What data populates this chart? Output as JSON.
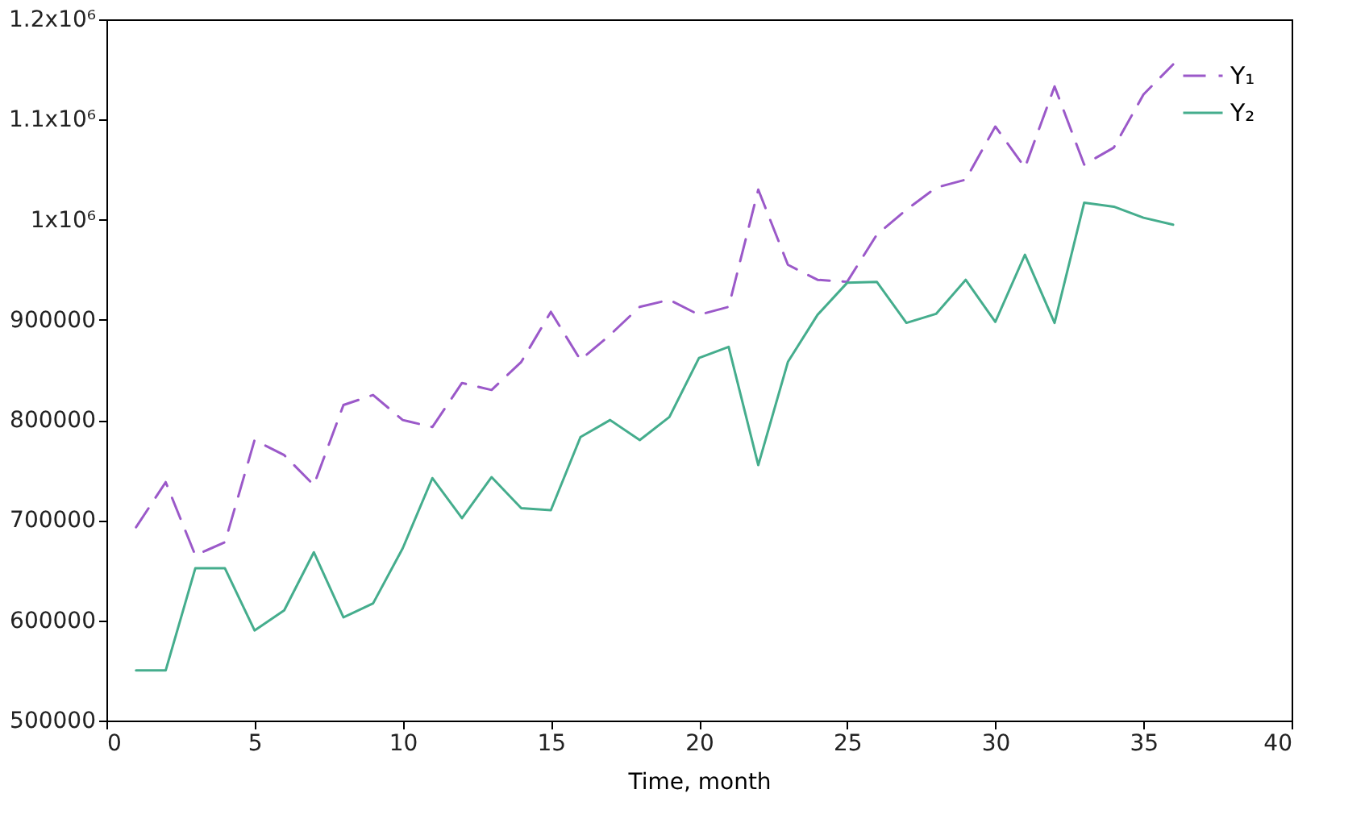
{
  "chart_data": {
    "type": "line",
    "xlabel": "Time, month",
    "x": [
      1,
      2,
      3,
      4,
      5,
      6,
      7,
      8,
      9,
      10,
      11,
      12,
      13,
      14,
      15,
      16,
      17,
      18,
      19,
      20,
      21,
      22,
      23,
      24,
      25,
      26,
      27,
      28,
      29,
      30,
      31,
      32,
      33,
      34,
      35,
      36
    ],
    "series": [
      {
        "name": "Y₁",
        "color": "#9b59c9",
        "line_style": "dashed",
        "values": [
          693000,
          738000,
          665000,
          678000,
          780000,
          765000,
          735000,
          815000,
          825000,
          800000,
          793000,
          837000,
          830000,
          858000,
          908000,
          860000,
          885000,
          913000,
          920000,
          905000,
          913000,
          1030000,
          955000,
          940000,
          938000,
          985000,
          1010000,
          1032000,
          1040000,
          1093000,
          1052000,
          1133000,
          1055000,
          1072000,
          1125000,
          1155000
        ]
      },
      {
        "name": "Y₂",
        "color": "#45ad8d",
        "line_style": "solid",
        "values": [
          550000,
          550000,
          652000,
          652000,
          590000,
          610000,
          668000,
          603000,
          617000,
          672000,
          742000,
          702000,
          743000,
          712000,
          710000,
          783000,
          800000,
          780000,
          803000,
          862000,
          873000,
          755000,
          858000,
          905000,
          937000,
          938000,
          897000,
          906000,
          940000,
          898000,
          965000,
          897000,
          1017000,
          1013000,
          1002000,
          995000
        ]
      }
    ],
    "xlim": [
      0,
      40
    ],
    "xticks": [
      0,
      5,
      10,
      15,
      20,
      25,
      30,
      35,
      40
    ],
    "ylim": [
      500000,
      1200000
    ],
    "yticks": [
      500000,
      600000,
      700000,
      800000,
      900000,
      {
        "value": 1000000,
        "label": "1x10⁶"
      },
      {
        "value": 1100000,
        "label": "1.1x10⁶"
      },
      {
        "value": 1200000,
        "label": "1.2x10⁶"
      }
    ],
    "grid": false,
    "legend": "top right",
    "marker": "none"
  }
}
